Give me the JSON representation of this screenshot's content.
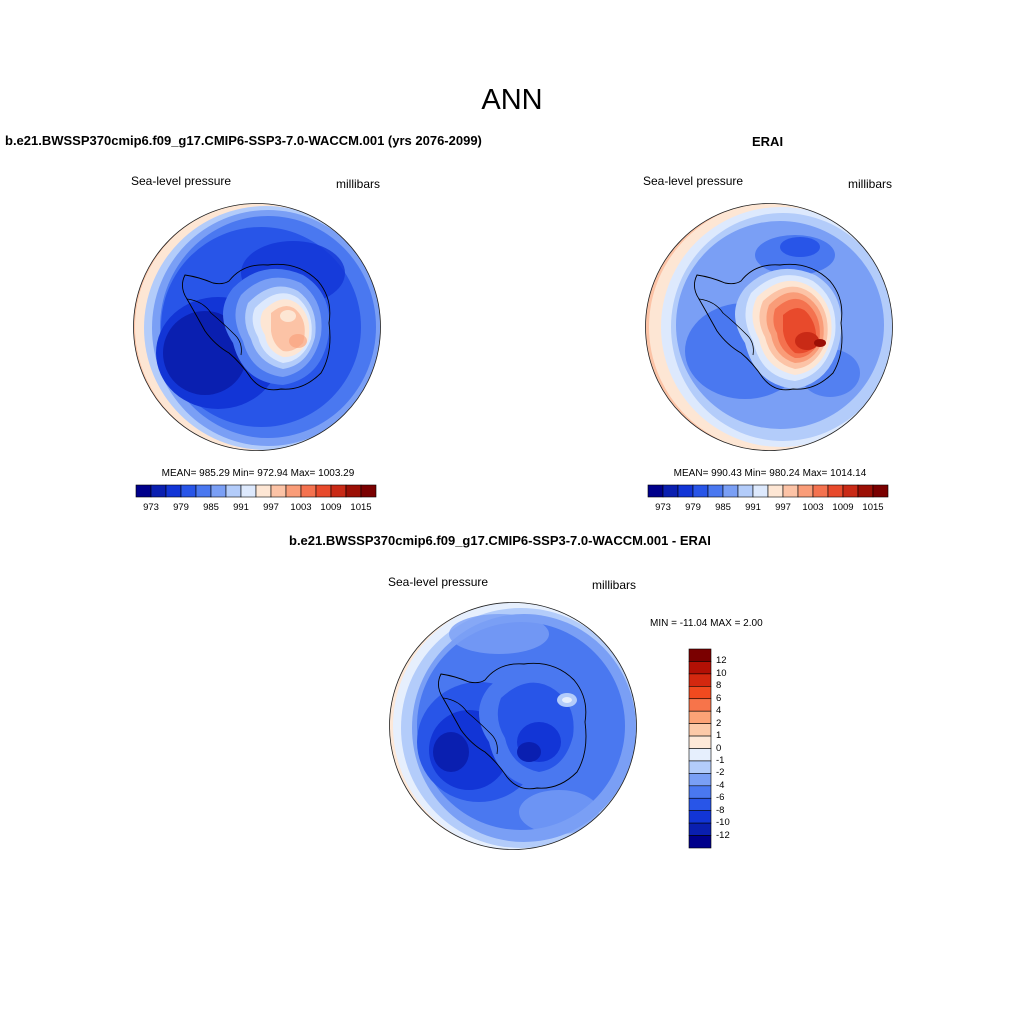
{
  "figure_title": "ANN",
  "panels": {
    "model": {
      "title": "b.e21.BWSSP370cmip6.f09_g17.CMIP6-SSP3-7.0-WACCM.001 (yrs 2076-2099)",
      "variable": "Sea-level pressure",
      "units": "millibars",
      "stats": "MEAN= 985.29  Min= 972.94  Max= 1003.29",
      "mean": 985.29,
      "min": 972.94,
      "max": 1003.29
    },
    "obs": {
      "title": "ERAI",
      "variable": "Sea-level pressure",
      "units": "millibars",
      "stats": "MEAN= 990.43  Min= 980.24  Max= 1014.14",
      "mean": 990.43,
      "min": 980.24,
      "max": 1014.14
    },
    "diff": {
      "title": "b.e21.BWSSP370cmip6.f09_g17.CMIP6-SSP3-7.0-WACCM.001 - ERAI",
      "variable": "Sea-level pressure",
      "units": "millibars",
      "stats": "MIN = -11.04 MAX =   2.00",
      "min": -11.04,
      "max": 2.0
    }
  },
  "colorbar_abs": {
    "tick_labels": [
      "973",
      "979",
      "985",
      "991",
      "997",
      "1003",
      "1009",
      "1015"
    ],
    "colors": [
      "#00008b",
      "#0a1fb0",
      "#1235d6",
      "#2855e8",
      "#4a78f0",
      "#7a9ff5",
      "#b3ccfa",
      "#dde9fd",
      "#fde6d4",
      "#fcc3a6",
      "#f99c78",
      "#f4724f",
      "#e84a2c",
      "#c92a16",
      "#9b0f05",
      "#7a0000"
    ]
  },
  "colorbar_diff": {
    "tick_labels": [
      "12",
      "10",
      "8",
      "6",
      "4",
      "2",
      "1",
      "0",
      "-1",
      "-2",
      "-4",
      "-6",
      "-8",
      "-10",
      "-12"
    ],
    "colors": [
      "#7a0000",
      "#b31005",
      "#d4280f",
      "#f14a1f",
      "#f7744a",
      "#fca276",
      "#fcc9a8",
      "#fde8d8",
      "#e6effd",
      "#b3ccfa",
      "#7a9ff5",
      "#4a78f0",
      "#2855e8",
      "#1235d6",
      "#0a1fb0",
      "#00008b"
    ]
  }
}
